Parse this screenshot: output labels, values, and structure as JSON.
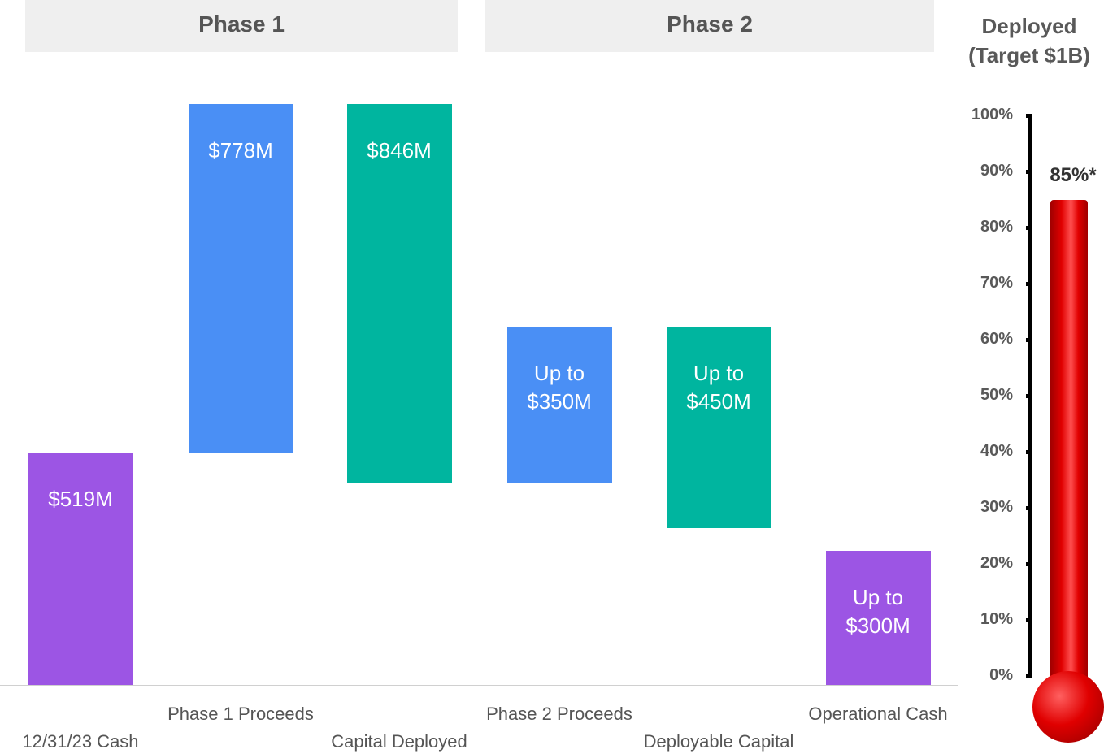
{
  "chart_data": [
    {
      "type": "waterfall",
      "phases": [
        "Phase 1",
        "Phase 2"
      ],
      "categories": [
        "12/31/23 Cash",
        "Phase 1 Proceeds",
        "Capital Deployed",
        "Phase 2 Proceeds",
        "Deployable Capital",
        "Operational Cash"
      ],
      "values": [
        519,
        778,
        -846,
        350,
        -450,
        300
      ],
      "value_labels": [
        "$519M",
        "$778M",
        "$846M",
        "Up to $350M",
        "Up to $450M",
        "Up to $300M"
      ],
      "measures": [
        "absolute",
        "relative",
        "relative",
        "relative",
        "relative",
        "absolute"
      ],
      "colors": [
        "#9c55e4",
        "#4a8ff5",
        "#00b59f",
        "#4a8ff5",
        "#00b59f",
        "#9c55e4"
      ]
    },
    {
      "type": "thermometer",
      "title": "Deployed (Target $1B)",
      "value": 85,
      "value_label": "85%*",
      "color": "#e00000",
      "ylim": [
        0,
        100
      ],
      "yticks": [
        {
          "value": 0,
          "label": "0%"
        },
        {
          "value": 10,
          "label": "10%"
        },
        {
          "value": 20,
          "label": "20%"
        },
        {
          "value": 30,
          "label": "30%"
        },
        {
          "value": 40,
          "label": "40%"
        },
        {
          "value": 50,
          "label": "50%"
        },
        {
          "value": 60,
          "label": "60%"
        },
        {
          "value": 70,
          "label": "70%"
        },
        {
          "value": 80,
          "label": "80%"
        },
        {
          "value": 90,
          "label": "90%"
        },
        {
          "value": 100,
          "label": "100%"
        }
      ]
    }
  ]
}
